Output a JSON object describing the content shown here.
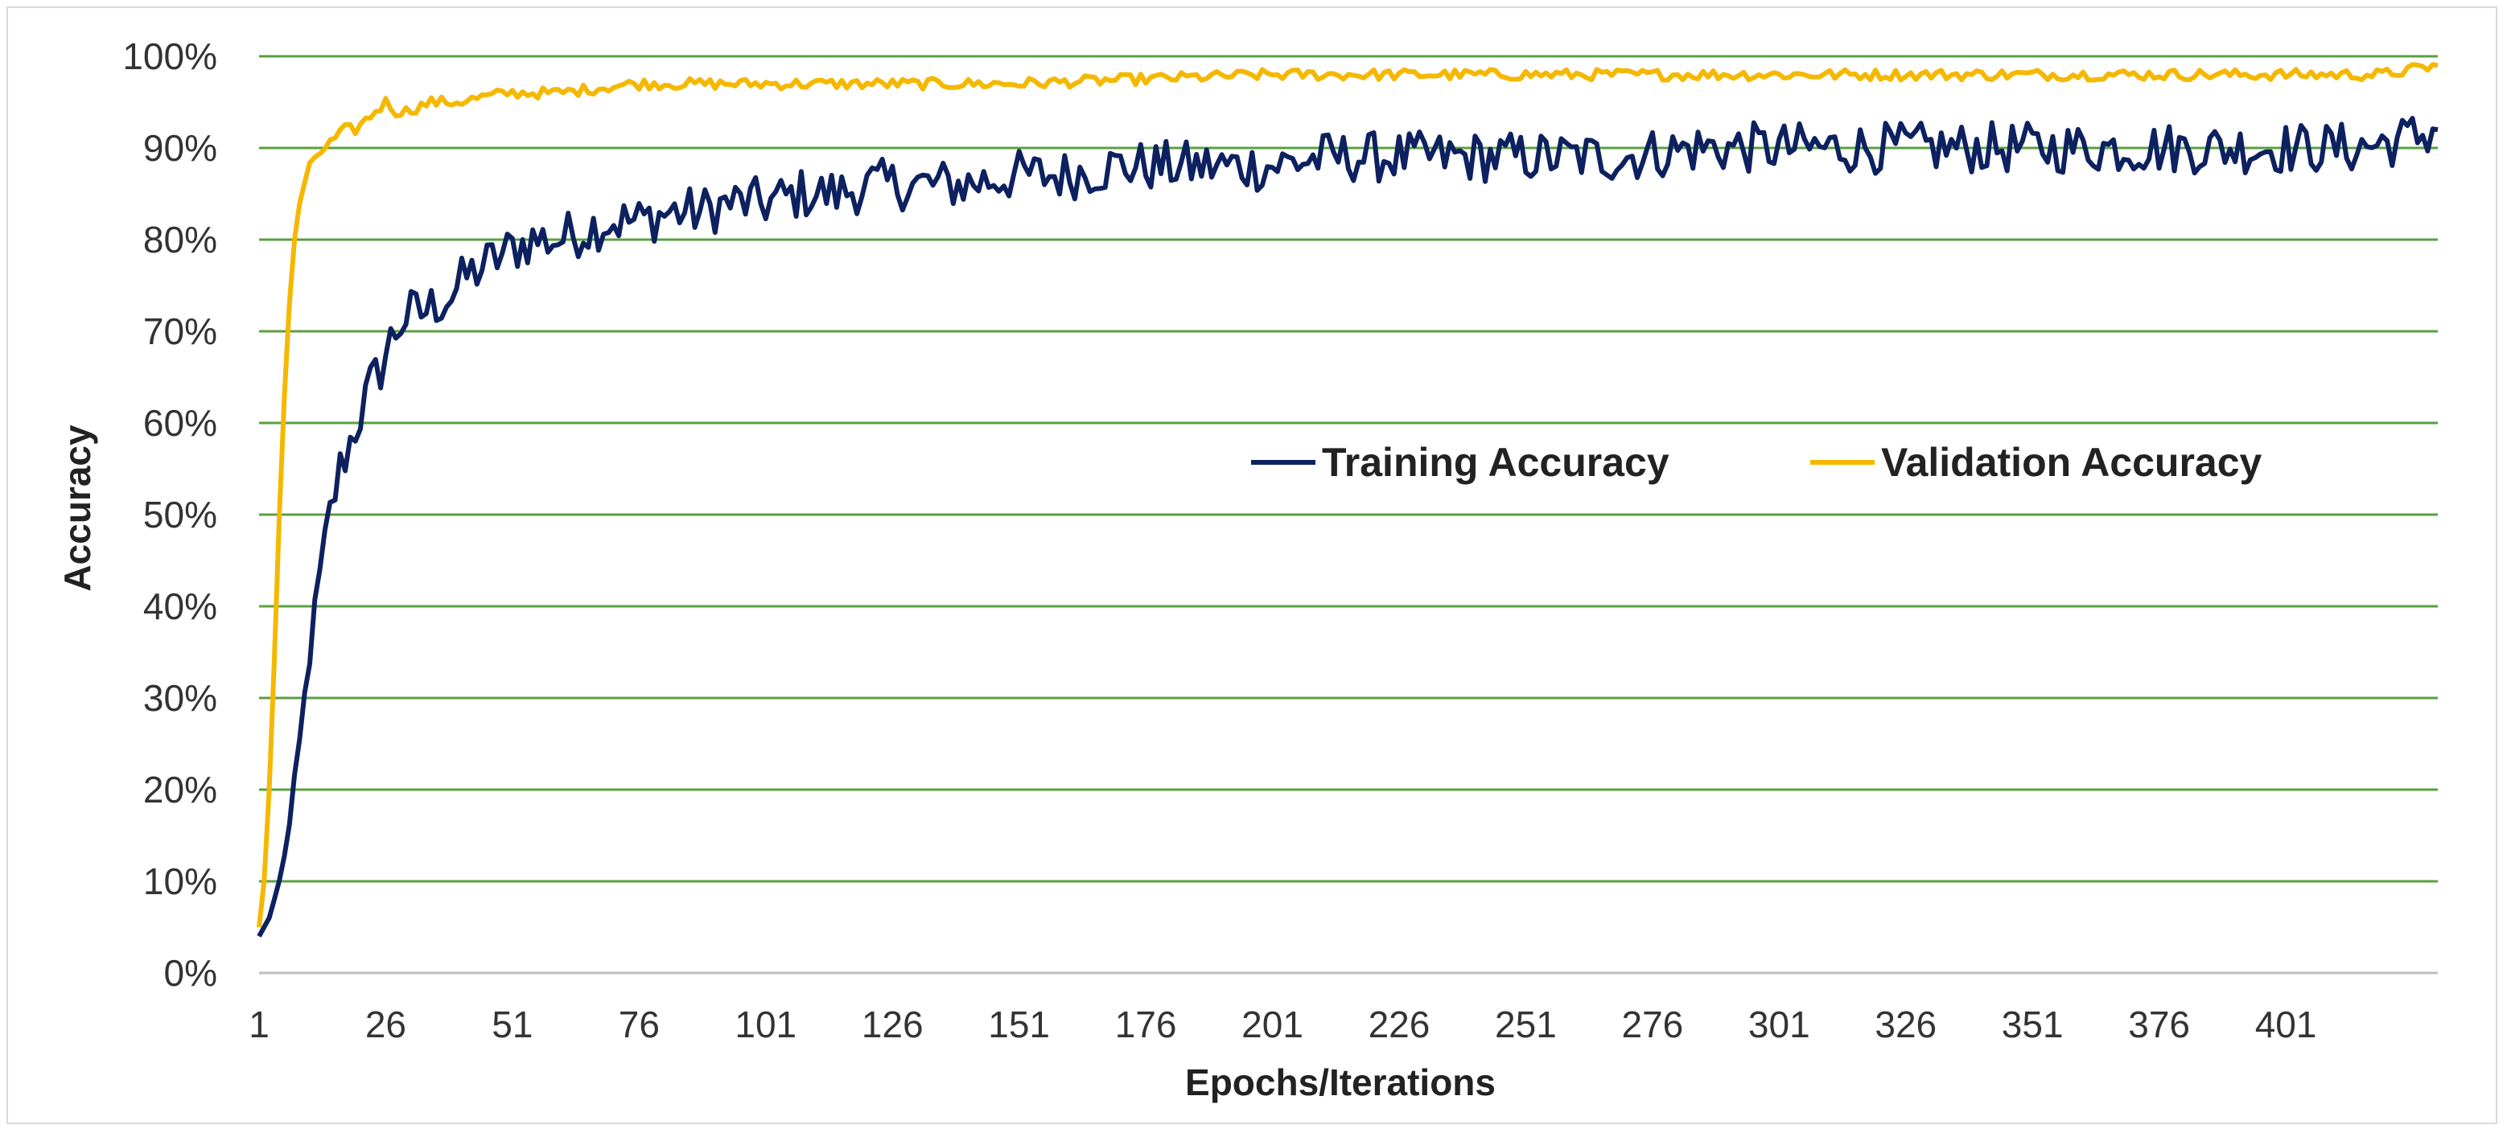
{
  "chart_data": {
    "type": "line",
    "title": "",
    "xlabel": "Epochs/Iterations",
    "ylabel": "Accuracy",
    "xlim": [
      1,
      431
    ],
    "ylim": [
      0,
      1
    ],
    "x_tick_labels": [
      "1",
      "26",
      "51",
      "76",
      "101",
      "126",
      "151",
      "176",
      "201",
      "226",
      "251",
      "276",
      "301",
      "326",
      "351",
      "376",
      "401"
    ],
    "y_tick_labels": [
      "0%",
      "10%",
      "20%",
      "30%",
      "40%",
      "50%",
      "60%",
      "70%",
      "80%",
      "90%",
      "100%"
    ],
    "grid": "horizontal",
    "legend_position": "center-right",
    "colors": {
      "training": "#0d2160",
      "validation": "#f5b800",
      "grid": "#5aa040",
      "axis": "#bfbfbf"
    },
    "series": [
      {
        "name": "Training Accuracy",
        "key": "training",
        "x": [
          1,
          3,
          5,
          7,
          9,
          11,
          13,
          15,
          17,
          19,
          21,
          23,
          25,
          27,
          29,
          31,
          33,
          36,
          39,
          42,
          45,
          48,
          51,
          55,
          60,
          65,
          70,
          76,
          82,
          88,
          94,
          101,
          108,
          115,
          122,
          130,
          140,
          150,
          160,
          170,
          180,
          190,
          200,
          212,
          225,
          240,
          255,
          270,
          285,
          300,
          320,
          340,
          360,
          380,
          400,
          415,
          425,
          431
        ],
        "values": [
          0.04,
          0.06,
          0.1,
          0.16,
          0.25,
          0.35,
          0.43,
          0.5,
          0.55,
          0.58,
          0.61,
          0.64,
          0.66,
          0.69,
          0.71,
          0.72,
          0.72,
          0.73,
          0.74,
          0.76,
          0.77,
          0.78,
          0.79,
          0.8,
          0.8,
          0.81,
          0.82,
          0.82,
          0.83,
          0.83,
          0.84,
          0.84,
          0.85,
          0.85,
          0.86,
          0.86,
          0.86,
          0.87,
          0.87,
          0.88,
          0.88,
          0.88,
          0.88,
          0.89,
          0.89,
          0.89,
          0.89,
          0.89,
          0.9,
          0.9,
          0.9,
          0.9,
          0.9,
          0.9,
          0.9,
          0.9,
          0.91,
          0.92
        ]
      },
      {
        "name": "Validation Accuracy",
        "key": "validation",
        "x": [
          1,
          2,
          3,
          4,
          5,
          6,
          7,
          8,
          9,
          10,
          11,
          12,
          14,
          16,
          18,
          20,
          22,
          24,
          26,
          28,
          30,
          35,
          40,
          50,
          60,
          75,
          100,
          150,
          200,
          250,
          300,
          350,
          400,
          420,
          431
        ],
        "values": [
          0.05,
          0.1,
          0.2,
          0.34,
          0.5,
          0.63,
          0.73,
          0.8,
          0.84,
          0.86,
          0.88,
          0.89,
          0.9,
          0.91,
          0.92,
          0.92,
          0.93,
          0.94,
          0.95,
          0.94,
          0.94,
          0.95,
          0.95,
          0.96,
          0.96,
          0.97,
          0.97,
          0.97,
          0.98,
          0.98,
          0.98,
          0.98,
          0.98,
          0.98,
          0.99
        ]
      }
    ]
  }
}
